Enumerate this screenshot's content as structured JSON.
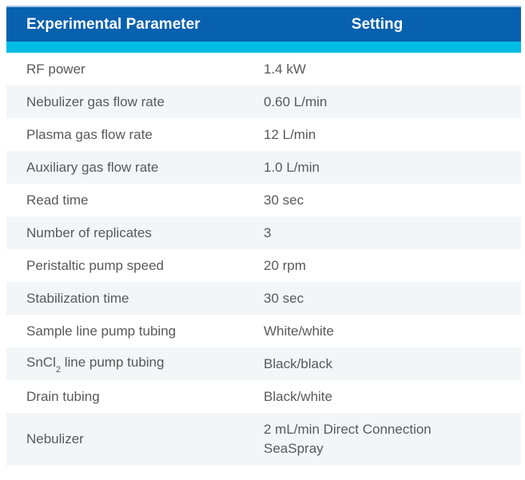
{
  "table": {
    "title": "experimental-parameters-table",
    "header": {
      "param_label": "Experimental Parameter",
      "setting_label": "Setting"
    },
    "rows": [
      {
        "param": "RF power",
        "setting": "1.4 kW"
      },
      {
        "param": "Nebulizer gas flow rate",
        "setting": "0.60 L/min"
      },
      {
        "param": "Plasma gas flow rate",
        "setting": "12 L/min"
      },
      {
        "param": "Auxiliary gas flow rate",
        "setting": "1.0 L/min"
      },
      {
        "param": "Read time",
        "setting": "30 sec"
      },
      {
        "param": "Number of replicates",
        "setting": "3"
      },
      {
        "param": "Peristaltic pump speed",
        "setting": "20 rpm"
      },
      {
        "param": "Stabilization time",
        "setting": "30 sec"
      },
      {
        "param": "Sample line pump tubing",
        "setting": "White/white"
      },
      {
        "param_parts": [
          "SnCl",
          "2",
          " line pump tubing"
        ],
        "setting": "Black/black"
      },
      {
        "param": "Drain tubing",
        "setting": "Black/white"
      },
      {
        "param": "Nebulizer",
        "setting": "2 mL/min Direct Connection SeaSpray"
      }
    ],
    "colors": {
      "header_bg": "#0761AE",
      "header_text": "#FFFFFF",
      "divider_bar": "#00BCE4",
      "header_top_border": "#A3C6E8",
      "alt_row_bg": "#F2F6F8",
      "body_text": "#58595C"
    }
  }
}
